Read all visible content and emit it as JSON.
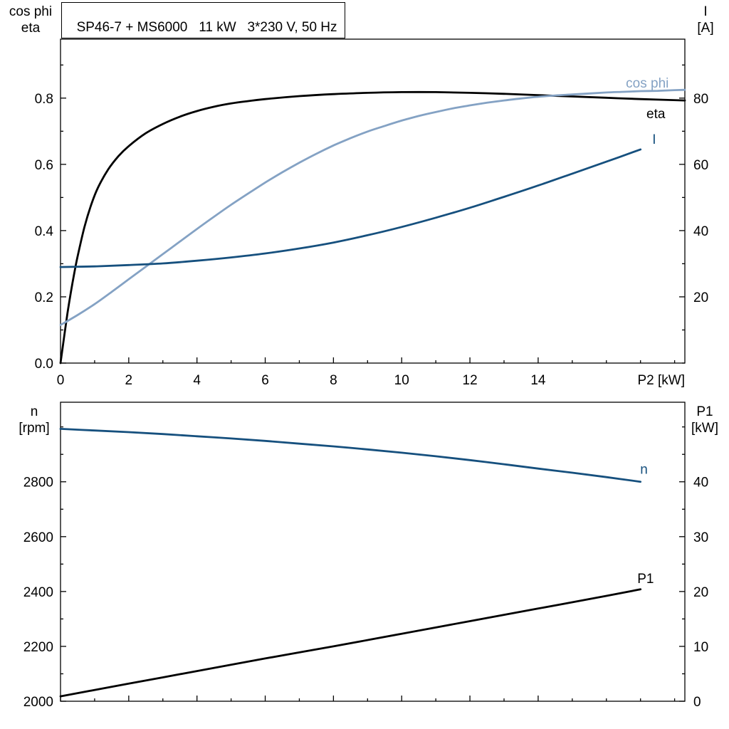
{
  "colors": {
    "background": "#ffffff",
    "frame": "#000000",
    "black_curve": "#000000",
    "light_blue_curve": "#84a2c4",
    "dark_blue_curve": "#16507e"
  },
  "chart_data": [
    {
      "id": "top",
      "type": "line",
      "title": "SP46-7 + MS6000   11 kW   3*230 V, 50 Hz",
      "x_axis": {
        "min": 0,
        "max": 18.3,
        "minor_step": 1,
        "major_ticks": [
          0,
          2,
          4,
          6,
          8,
          10,
          12,
          14
        ],
        "tick_labels": [
          "0",
          "2",
          "4",
          "6",
          "8",
          "10",
          "12",
          "14"
        ],
        "labels_visible": true,
        "label": "P2 [kW]"
      },
      "left_axis": {
        "min": 0,
        "max": 0.978,
        "minor_step": 0.1,
        "major_ticks": [
          0,
          0.2,
          0.4,
          0.6,
          0.8
        ],
        "tick_labels": [
          "0.0",
          "0.2",
          "0.4",
          "0.6",
          "0.8"
        ],
        "header": [
          "cos phi",
          "eta"
        ]
      },
      "right_axis": {
        "min": 0,
        "max": 97.8,
        "minor_step": 10,
        "major_ticks": [
          20,
          40,
          60,
          80
        ],
        "tick_labels": [
          "20",
          "40",
          "60",
          "80"
        ],
        "header": [
          "I",
          "[A]"
        ]
      },
      "series": [
        {
          "name": "eta",
          "axis": "left",
          "color": "#000000",
          "label_pos": [
            17.45,
            0.752
          ],
          "points": [
            [
              0,
              0
            ],
            [
              0.1,
              0.075
            ],
            [
              0.2,
              0.148
            ],
            [
              0.3,
              0.212
            ],
            [
              0.4,
              0.27
            ],
            [
              0.5,
              0.322
            ],
            [
              0.7,
              0.41
            ],
            [
              0.9,
              0.478
            ],
            [
              1.1,
              0.53
            ],
            [
              1.4,
              0.585
            ],
            [
              1.7,
              0.625
            ],
            [
              2,
              0.655
            ],
            [
              2.5,
              0.694
            ],
            [
              3,
              0.722
            ],
            [
              3.5,
              0.744
            ],
            [
              4,
              0.761
            ],
            [
              4.5,
              0.774
            ],
            [
              5,
              0.784
            ],
            [
              5.5,
              0.791
            ],
            [
              6,
              0.797
            ],
            [
              7,
              0.806
            ],
            [
              8,
              0.812
            ],
            [
              9,
              0.816
            ],
            [
              10,
              0.818
            ],
            [
              11,
              0.818
            ],
            [
              12,
              0.816
            ],
            [
              13,
              0.813
            ],
            [
              14,
              0.809
            ],
            [
              15,
              0.805
            ],
            [
              16,
              0.801
            ],
            [
              17,
              0.797
            ],
            [
              18.3,
              0.793
            ]
          ]
        },
        {
          "name": "cos phi",
          "axis": "left",
          "color": "#84a2c4",
          "label_pos": [
            17.2,
            0.845
          ],
          "points": [
            [
              0,
              0.115
            ],
            [
              0.5,
              0.145
            ],
            [
              1,
              0.178
            ],
            [
              1.5,
              0.215
            ],
            [
              2,
              0.253
            ],
            [
              2.5,
              0.291
            ],
            [
              3,
              0.329
            ],
            [
              3.5,
              0.367
            ],
            [
              4,
              0.405
            ],
            [
              4.5,
              0.442
            ],
            [
              5,
              0.478
            ],
            [
              5.5,
              0.512
            ],
            [
              6,
              0.545
            ],
            [
              6.5,
              0.576
            ],
            [
              7,
              0.605
            ],
            [
              7.5,
              0.632
            ],
            [
              8,
              0.657
            ],
            [
              8.5,
              0.679
            ],
            [
              9,
              0.699
            ],
            [
              9.5,
              0.716
            ],
            [
              10,
              0.732
            ],
            [
              10.5,
              0.746
            ],
            [
              11,
              0.758
            ],
            [
              11.5,
              0.769
            ],
            [
              12,
              0.778
            ],
            [
              12.5,
              0.786
            ],
            [
              13,
              0.793
            ],
            [
              13.5,
              0.799
            ],
            [
              14,
              0.804
            ],
            [
              14.5,
              0.808
            ],
            [
              15,
              0.811
            ],
            [
              15.5,
              0.814
            ],
            [
              16,
              0.817
            ],
            [
              16.5,
              0.819
            ],
            [
              17,
              0.821
            ],
            [
              17.5,
              0.822
            ],
            [
              18,
              0.824
            ],
            [
              18.3,
              0.825
            ]
          ]
        },
        {
          "name": "I",
          "axis": "right",
          "color": "#16507e",
          "label_pos": [
            17.4,
            67.5
          ],
          "points": [
            [
              0,
              29
            ],
            [
              1,
              29.2
            ],
            [
              2,
              29.6
            ],
            [
              3,
              30.1
            ],
            [
              4,
              30.9
            ],
            [
              5,
              31.9
            ],
            [
              6,
              33.1
            ],
            [
              7,
              34.6
            ],
            [
              8,
              36.4
            ],
            [
              9,
              38.6
            ],
            [
              10,
              41.1
            ],
            [
              11,
              43.9
            ],
            [
              12,
              46.9
            ],
            [
              13,
              50.2
            ],
            [
              14,
              53.6
            ],
            [
              15,
              57.2
            ],
            [
              16,
              60.8
            ],
            [
              17,
              64.5
            ]
          ]
        }
      ]
    },
    {
      "id": "bottom",
      "type": "line",
      "title": "",
      "x_axis": {
        "min": 0,
        "max": 18.3,
        "minor_step": 1,
        "major_ticks": [
          0,
          2,
          4,
          6,
          8,
          10,
          12,
          14
        ],
        "tick_labels": [
          "0",
          "2",
          "4",
          "6",
          "8",
          "10",
          "12",
          "14"
        ],
        "labels_visible": false,
        "label": ""
      },
      "left_axis": {
        "min": 2000,
        "max": 3090,
        "minor_step": 100,
        "major_ticks": [
          2000,
          2200,
          2400,
          2600,
          2800
        ],
        "tick_labels": [
          "2000",
          "2200",
          "2400",
          "2600",
          "2800"
        ],
        "header": [
          "n",
          "[rpm]"
        ]
      },
      "right_axis": {
        "min": 0,
        "max": 54.5,
        "minor_step": 5,
        "major_ticks": [
          0,
          10,
          20,
          30,
          40
        ],
        "tick_labels": [
          "0",
          "10",
          "20",
          "30",
          "40"
        ],
        "header": [
          "P1",
          "[kW]"
        ]
      },
      "series": [
        {
          "name": "n",
          "axis": "left",
          "color": "#16507e",
          "label_pos": [
            17.1,
            2845
          ],
          "points": [
            [
              0,
              2993
            ],
            [
              1,
              2987
            ],
            [
              2,
              2981
            ],
            [
              3,
              2974
            ],
            [
              4,
              2966
            ],
            [
              5,
              2958
            ],
            [
              6,
              2949
            ],
            [
              7,
              2939
            ],
            [
              8,
              2929
            ],
            [
              9,
              2918
            ],
            [
              10,
              2906
            ],
            [
              11,
              2893
            ],
            [
              12,
              2879
            ],
            [
              13,
              2864
            ],
            [
              14,
              2848
            ],
            [
              15,
              2833
            ],
            [
              16,
              2817
            ],
            [
              17,
              2800
            ]
          ]
        },
        {
          "name": "P1",
          "axis": "right",
          "color": "#000000",
          "label_pos": [
            17.15,
            22.3
          ],
          "points": [
            [
              0,
              0.9
            ],
            [
              2,
              3.2
            ],
            [
              4,
              5.5
            ],
            [
              6,
              7.8
            ],
            [
              8,
              10.0
            ],
            [
              10,
              12.3
            ],
            [
              12,
              14.6
            ],
            [
              14,
              16.9
            ],
            [
              16,
              19.2
            ],
            [
              17,
              20.4
            ]
          ]
        }
      ]
    }
  ]
}
